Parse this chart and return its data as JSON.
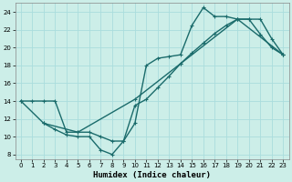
{
  "xlabel": "Humidex (Indice chaleur)",
  "bg_color": "#cceee8",
  "line_color": "#1a6b6b",
  "grid_color": "#aadddd",
  "xlim": [
    -0.5,
    23.5
  ],
  "ylim": [
    7.5,
    25.0
  ],
  "xticks": [
    0,
    1,
    2,
    3,
    4,
    5,
    6,
    7,
    8,
    9,
    10,
    11,
    12,
    13,
    14,
    15,
    16,
    17,
    18,
    19,
    20,
    21,
    22,
    23
  ],
  "yticks": [
    8,
    10,
    12,
    14,
    16,
    18,
    20,
    22,
    24
  ],
  "line1_x": [
    0,
    1,
    2,
    3,
    4,
    5,
    6,
    7,
    8,
    9,
    10,
    11,
    12,
    13,
    14,
    15,
    16,
    17,
    18,
    19,
    20,
    21,
    22,
    23
  ],
  "line1_y": [
    14,
    14,
    14,
    14,
    10.5,
    10.5,
    10.5,
    10.0,
    9.5,
    9.5,
    13.5,
    14.2,
    15.5,
    16.8,
    18.2,
    19.4,
    20.5,
    21.6,
    22.5,
    23.2,
    23.2,
    23.2,
    21.0,
    19.2
  ],
  "line2_x": [
    2,
    3,
    4,
    5,
    6,
    7,
    8,
    9,
    10,
    11,
    12,
    13,
    14,
    15,
    16,
    17,
    18,
    19,
    20,
    21,
    22,
    23
  ],
  "line2_y": [
    11.5,
    10.8,
    10.2,
    10.0,
    10.0,
    8.5,
    8.0,
    9.5,
    11.5,
    18.0,
    18.8,
    19.0,
    19.2,
    22.5,
    24.5,
    23.5,
    23.5,
    23.2,
    23.2,
    21.5,
    20.0,
    19.2
  ],
  "line3_x": [
    0,
    2,
    5,
    10,
    14,
    19,
    23
  ],
  "line3_y": [
    14.0,
    11.5,
    10.5,
    14.2,
    18.2,
    23.2,
    19.2
  ],
  "marker_size": 3.5,
  "linewidth": 1.0
}
